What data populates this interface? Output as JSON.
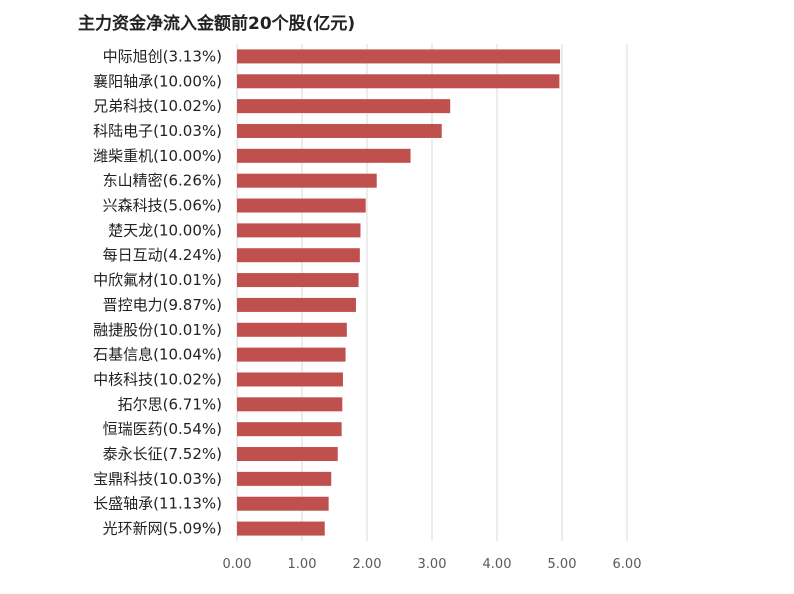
{
  "chart_data": {
    "type": "bar",
    "orientation": "horizontal",
    "title": "主力资金净流入金额前20个股(亿元)",
    "xlabel": "",
    "ylabel": "",
    "categories": [
      "中际旭创(3.13%)",
      "襄阳轴承(10.00%)",
      "兄弟科技(10.02%)",
      "科陆电子(10.03%)",
      "潍柴重机(10.00%)",
      "东山精密(6.26%)",
      "兴森科技(5.06%)",
      "楚天龙(10.00%)",
      "每日互动(4.24%)",
      "中欣氟材(10.01%)",
      "晋控电力(9.87%)",
      "融捷股份(10.01%)",
      "石基信息(10.04%)",
      "中核科技(10.02%)",
      "拓尔思(6.71%)",
      "恒瑞医药(0.54%)",
      "泰永长征(7.52%)",
      "宝鼎科技(10.03%)",
      "长盛轴承(11.13%)",
      "光环新网(5.09%)"
    ],
    "values": [
      4.97,
      4.96,
      3.28,
      3.15,
      2.67,
      2.15,
      1.98,
      1.9,
      1.89,
      1.87,
      1.83,
      1.69,
      1.67,
      1.63,
      1.62,
      1.61,
      1.55,
      1.45,
      1.41,
      1.35
    ],
    "xlim": [
      0,
      6
    ],
    "ticks": [
      "0.00",
      "1.00",
      "2.00",
      "3.00",
      "4.00",
      "5.00",
      "6.00"
    ],
    "grid": true,
    "legend": "none",
    "bar_color": "#c0504d",
    "grid_color": "#d9d9d9"
  }
}
